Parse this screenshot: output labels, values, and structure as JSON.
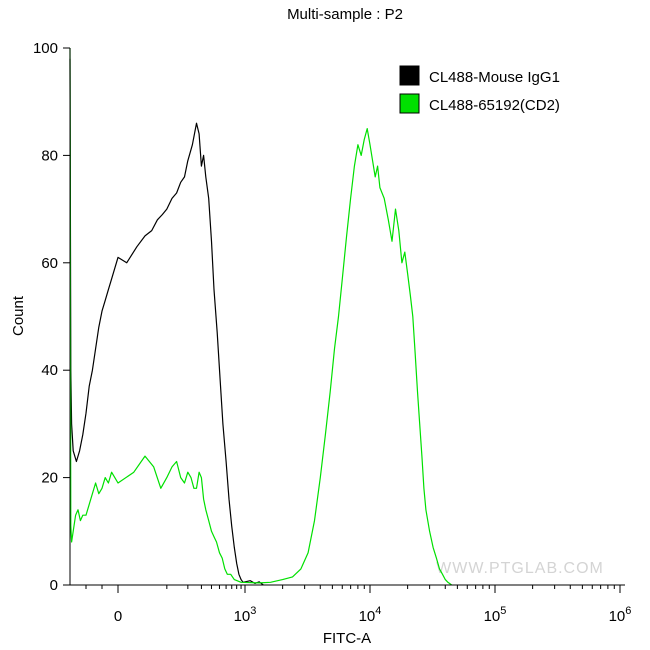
{
  "chart_data": {
    "type": "area",
    "title": "Multi-sample : P2",
    "xlabel": "FITC-A",
    "ylabel": "Count",
    "xscale": "biexponential",
    "xlim": [
      -300,
      1000000
    ],
    "ylim": [
      0,
      100
    ],
    "grid": false,
    "legend_position": "top-right",
    "watermark": "WWW.PTGLAB.COM",
    "yticks": [
      {
        "value": 0,
        "label": "0"
      },
      {
        "value": 20,
        "label": "20"
      },
      {
        "value": 40,
        "label": "40"
      },
      {
        "value": 60,
        "label": "60"
      },
      {
        "value": 80,
        "label": "80"
      },
      {
        "value": 100,
        "label": "100"
      }
    ],
    "xticks": [
      {
        "value": 0,
        "base": "0",
        "exp": ""
      },
      {
        "value": 1000,
        "base": "10",
        "exp": "3"
      },
      {
        "value": 10000,
        "base": "10",
        "exp": "4"
      },
      {
        "value": 100000,
        "base": "10",
        "exp": "5"
      },
      {
        "value": 1000000,
        "base": "10",
        "exp": "6"
      }
    ],
    "series": [
      {
        "name": "CL488-Mouse IgG1",
        "color": "#000000",
        "points": [
          [
            -300,
            98
          ],
          [
            -295,
            40
          ],
          [
            -290,
            30
          ],
          [
            -280,
            25
          ],
          [
            -260,
            23
          ],
          [
            -240,
            25
          ],
          [
            -220,
            28
          ],
          [
            -200,
            32
          ],
          [
            -180,
            37
          ],
          [
            -160,
            40
          ],
          [
            -140,
            44
          ],
          [
            -120,
            48
          ],
          [
            -100,
            51
          ],
          [
            -80,
            53
          ],
          [
            -60,
            55
          ],
          [
            -40,
            57
          ],
          [
            -20,
            59
          ],
          [
            0,
            61
          ],
          [
            10,
            60
          ],
          [
            25,
            63
          ],
          [
            40,
            65
          ],
          [
            55,
            66
          ],
          [
            70,
            68
          ],
          [
            85,
            69
          ],
          [
            100,
            70
          ],
          [
            120,
            72
          ],
          [
            140,
            73
          ],
          [
            160,
            75
          ],
          [
            180,
            76
          ],
          [
            200,
            79
          ],
          [
            230,
            82
          ],
          [
            260,
            86
          ],
          [
            280,
            84
          ],
          [
            300,
            78
          ],
          [
            320,
            80
          ],
          [
            340,
            76
          ],
          [
            370,
            72
          ],
          [
            400,
            64
          ],
          [
            430,
            55
          ],
          [
            470,
            47
          ],
          [
            510,
            38
          ],
          [
            550,
            30
          ],
          [
            600,
            23
          ],
          [
            650,
            16
          ],
          [
            700,
            11
          ],
          [
            750,
            7
          ],
          [
            800,
            4
          ],
          [
            850,
            2
          ],
          [
            900,
            1
          ],
          [
            950,
            0.5
          ],
          [
            1100,
            0.8
          ],
          [
            1200,
            0.3
          ],
          [
            1300,
            0.6
          ],
          [
            1400,
            0
          ]
        ]
      },
      {
        "name": "CL488-65192(CD2)",
        "color": "#00e000",
        "points": [
          [
            -300,
            100
          ],
          [
            -295,
            11
          ],
          [
            -290,
            8
          ],
          [
            -280,
            10
          ],
          [
            -265,
            13
          ],
          [
            -250,
            14
          ],
          [
            -235,
            12
          ],
          [
            -220,
            13
          ],
          [
            -200,
            13
          ],
          [
            -180,
            15
          ],
          [
            -160,
            17
          ],
          [
            -140,
            19
          ],
          [
            -120,
            17
          ],
          [
            -100,
            18
          ],
          [
            -80,
            20
          ],
          [
            -60,
            19
          ],
          [
            -40,
            21
          ],
          [
            -20,
            20
          ],
          [
            0,
            19
          ],
          [
            20,
            21
          ],
          [
            40,
            24
          ],
          [
            60,
            22
          ],
          [
            80,
            18
          ],
          [
            100,
            20
          ],
          [
            120,
            22
          ],
          [
            140,
            23
          ],
          [
            160,
            20
          ],
          [
            180,
            19
          ],
          [
            200,
            21
          ],
          [
            220,
            20
          ],
          [
            240,
            18
          ],
          [
            260,
            18
          ],
          [
            280,
            21
          ],
          [
            300,
            20
          ],
          [
            320,
            16
          ],
          [
            340,
            14
          ],
          [
            370,
            12
          ],
          [
            400,
            10
          ],
          [
            430,
            9
          ],
          [
            460,
            8
          ],
          [
            500,
            6
          ],
          [
            540,
            5
          ],
          [
            580,
            3
          ],
          [
            620,
            2
          ],
          [
            680,
            2
          ],
          [
            750,
            1
          ],
          [
            900,
            0.5
          ],
          [
            1300,
            0.4
          ],
          [
            1600,
            0.5
          ],
          [
            2000,
            1
          ],
          [
            2400,
            1.5
          ],
          [
            2800,
            3
          ],
          [
            3200,
            6
          ],
          [
            3600,
            12
          ],
          [
            4000,
            20
          ],
          [
            4400,
            28
          ],
          [
            4800,
            36
          ],
          [
            5200,
            44
          ],
          [
            5600,
            50
          ],
          [
            6000,
            57
          ],
          [
            6500,
            65
          ],
          [
            7000,
            72
          ],
          [
            7500,
            78
          ],
          [
            8000,
            82
          ],
          [
            8500,
            80
          ],
          [
            9000,
            83
          ],
          [
            9500,
            85
          ],
          [
            10000,
            82
          ],
          [
            10500,
            79
          ],
          [
            11000,
            76
          ],
          [
            11500,
            78
          ],
          [
            12000,
            74
          ],
          [
            13000,
            72
          ],
          [
            14000,
            68
          ],
          [
            15000,
            64
          ],
          [
            16000,
            70
          ],
          [
            17000,
            66
          ],
          [
            18000,
            60
          ],
          [
            19000,
            62
          ],
          [
            20000,
            58
          ],
          [
            21000,
            54
          ],
          [
            22000,
            50
          ],
          [
            23000,
            43
          ],
          [
            24000,
            36
          ],
          [
            25000,
            30
          ],
          [
            26000,
            24
          ],
          [
            27000,
            18
          ],
          [
            28000,
            14
          ],
          [
            30000,
            10
          ],
          [
            32000,
            7
          ],
          [
            34000,
            5
          ],
          [
            36000,
            3
          ],
          [
            38000,
            2
          ],
          [
            40000,
            1
          ],
          [
            42000,
            0.5
          ],
          [
            45000,
            0
          ]
        ]
      }
    ]
  }
}
